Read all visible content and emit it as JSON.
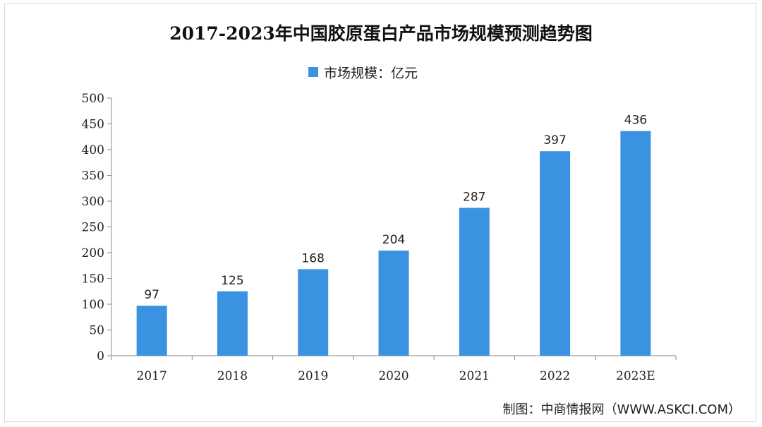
{
  "chart_data": {
    "type": "bar",
    "title": "2017-2023年中国胶原蛋白产品市场规模预测趋势图",
    "categories": [
      "2017",
      "2018",
      "2019",
      "2020",
      "2021",
      "2022",
      "2023E"
    ],
    "series": [
      {
        "name": "市场规模：亿元",
        "values": [
          97,
          125,
          168,
          204,
          287,
          397,
          436
        ],
        "color": "#3a93e0"
      }
    ],
    "ylim": [
      0,
      500
    ],
    "yticks": [
      0,
      50,
      100,
      150,
      200,
      250,
      300,
      350,
      400,
      450,
      500
    ],
    "xlabel": "",
    "ylabel": "",
    "grid": false,
    "legend_position": "top-center",
    "data_labels": true
  },
  "source_text": "制图：中商情报网（WWW.ASKCI.COM）"
}
